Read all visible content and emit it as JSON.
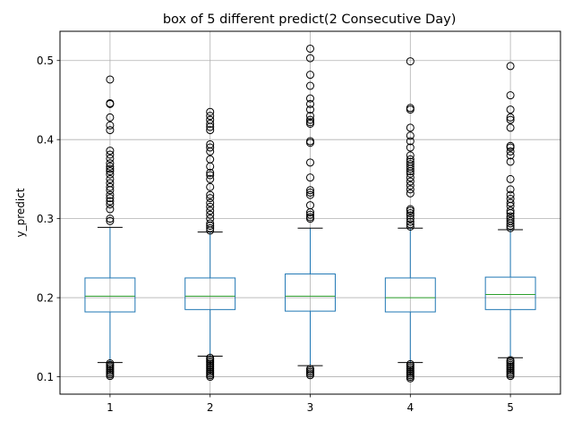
{
  "chart_data": {
    "type": "box",
    "title": "box of 5 different predict(2 Consecutive Day)",
    "xlabel": "",
    "ylabel": "y_predict",
    "ylim": [
      0.078,
      0.537
    ],
    "yticks": [
      0.1,
      0.2,
      0.3,
      0.4,
      0.5
    ],
    "ytick_labels": [
      "0.1",
      "0.2",
      "0.3",
      "0.4",
      "0.5"
    ],
    "grid": true,
    "colors": {
      "box": "#1f77b4",
      "median": "#2ca02c",
      "whisker": "#1f77b4",
      "cap": "#000000",
      "flier": "#000000",
      "grid": "#b0b0b0"
    },
    "boxes": [
      {
        "label": "1",
        "whislo": 0.118,
        "q1": 0.182,
        "med": 0.202,
        "q3": 0.225,
        "whishi": 0.289,
        "fliers": [
          0.101,
          0.103,
          0.105,
          0.107,
          0.109,
          0.111,
          0.113,
          0.115,
          0.117,
          0.297,
          0.3,
          0.312,
          0.318,
          0.322,
          0.326,
          0.33,
          0.336,
          0.34,
          0.345,
          0.35,
          0.356,
          0.36,
          0.363,
          0.366,
          0.37,
          0.376,
          0.381,
          0.386,
          0.412,
          0.418,
          0.428,
          0.445,
          0.446,
          0.476
        ]
      },
      {
        "label": "2",
        "whislo": 0.126,
        "q1": 0.185,
        "med": 0.202,
        "q3": 0.225,
        "whishi": 0.283,
        "fliers": [
          0.1,
          0.102,
          0.104,
          0.106,
          0.108,
          0.11,
          0.112,
          0.114,
          0.116,
          0.118,
          0.12,
          0.122,
          0.124,
          0.285,
          0.288,
          0.291,
          0.294,
          0.3,
          0.305,
          0.31,
          0.315,
          0.32,
          0.326,
          0.33,
          0.34,
          0.35,
          0.355,
          0.358,
          0.366,
          0.375,
          0.385,
          0.39,
          0.394,
          0.412,
          0.416,
          0.42,
          0.425,
          0.43,
          0.435
        ]
      },
      {
        "label": "3",
        "whislo": 0.114,
        "q1": 0.183,
        "med": 0.202,
        "q3": 0.23,
        "whishi": 0.288,
        "fliers": [
          0.102,
          0.104,
          0.106,
          0.108,
          0.11,
          0.3,
          0.302,
          0.305,
          0.308,
          0.317,
          0.33,
          0.333,
          0.336,
          0.352,
          0.371,
          0.396,
          0.398,
          0.42,
          0.422,
          0.425,
          0.43,
          0.438,
          0.445,
          0.452,
          0.468,
          0.482,
          0.503,
          0.515
        ]
      },
      {
        "label": "4",
        "whislo": 0.118,
        "q1": 0.182,
        "med": 0.2,
        "q3": 0.225,
        "whishi": 0.288,
        "fliers": [
          0.098,
          0.1,
          0.102,
          0.104,
          0.106,
          0.108,
          0.11,
          0.112,
          0.114,
          0.116,
          0.29,
          0.293,
          0.296,
          0.3,
          0.304,
          0.307,
          0.31,
          0.312,
          0.332,
          0.337,
          0.342,
          0.347,
          0.352,
          0.357,
          0.36,
          0.363,
          0.366,
          0.369,
          0.372,
          0.375,
          0.38,
          0.39,
          0.398,
          0.405,
          0.415,
          0.438,
          0.44,
          0.499
        ]
      },
      {
        "label": "5",
        "whislo": 0.124,
        "q1": 0.185,
        "med": 0.204,
        "q3": 0.226,
        "whishi": 0.286,
        "fliers": [
          0.101,
          0.103,
          0.105,
          0.107,
          0.109,
          0.111,
          0.113,
          0.115,
          0.117,
          0.119,
          0.121,
          0.288,
          0.291,
          0.294,
          0.297,
          0.3,
          0.303,
          0.307,
          0.31,
          0.316,
          0.32,
          0.325,
          0.33,
          0.337,
          0.35,
          0.372,
          0.38,
          0.385,
          0.39,
          0.392,
          0.415,
          0.425,
          0.428,
          0.438,
          0.456,
          0.493
        ]
      }
    ]
  }
}
